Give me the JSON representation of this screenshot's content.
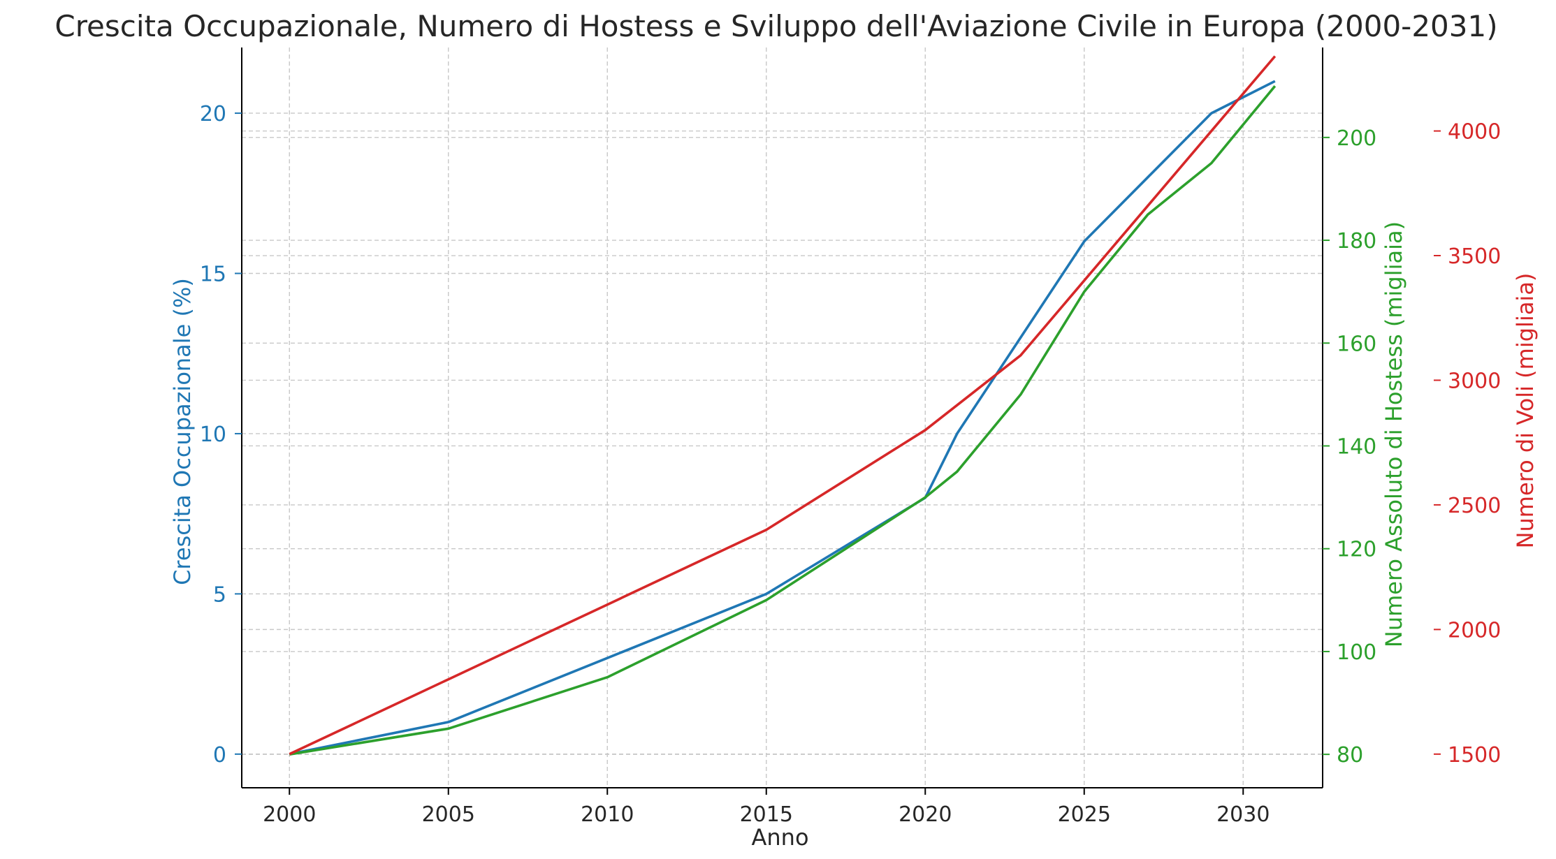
{
  "chart_data": {
    "type": "line",
    "title": "Crescita Occupazionale, Numero di Hostess e Sviluppo dell'Aviazione Civile in Europa (2000-2031)",
    "xlabel": "Anno",
    "xlim": [
      1998.5,
      2032.5
    ],
    "xticks": [
      2000,
      2005,
      2010,
      2015,
      2020,
      2025,
      2030
    ],
    "grid": true,
    "legend": "none",
    "axes": [
      {
        "id": "left",
        "label": "Crescita Occupazionale (%)",
        "color": "#1f77b4",
        "ylim": [
          -1.05,
          22.05
        ],
        "ticks": [
          0,
          5,
          10,
          15,
          20
        ]
      },
      {
        "id": "right1",
        "label": "Numero Assoluto di Hostess (migliaia)",
        "color": "#2ca02c",
        "ylim": [
          73.5,
          217.5
        ],
        "ticks": [
          80,
          100,
          120,
          140,
          160,
          180,
          200
        ]
      },
      {
        "id": "right2",
        "label": "Numero di Voli (migliaia)",
        "color": "#d62728",
        "ylim": [
          1365,
          4335
        ],
        "ticks": [
          1500,
          2000,
          2500,
          3000,
          3500,
          4000
        ]
      }
    ],
    "series": [
      {
        "axis": "left",
        "color": "#1f77b4",
        "x": [
          2000,
          2005,
          2010,
          2015,
          2020,
          2021,
          2023,
          2025,
          2027,
          2029,
          2031
        ],
        "values": [
          0,
          1,
          3,
          5,
          8,
          10,
          13,
          16,
          18,
          20,
          21
        ]
      },
      {
        "axis": "right1",
        "color": "#2ca02c",
        "x": [
          2000,
          2005,
          2010,
          2015,
          2020,
          2021,
          2023,
          2025,
          2027,
          2029,
          2031
        ],
        "values": [
          80,
          85,
          95,
          110,
          130,
          135,
          150,
          170,
          185,
          195,
          210
        ]
      },
      {
        "axis": "right2",
        "color": "#d62728",
        "x": [
          2000,
          2005,
          2010,
          2015,
          2020,
          2023,
          2025,
          2029,
          2031
        ],
        "values": [
          1500,
          1800,
          2100,
          2400,
          2800,
          3100,
          3400,
          4000,
          4300
        ]
      }
    ]
  }
}
